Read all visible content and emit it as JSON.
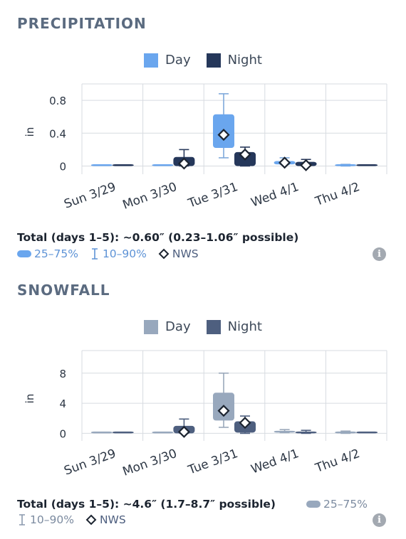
{
  "precipitation": {
    "title": "PRECIPITATION",
    "legend": {
      "day_label": "Day",
      "night_label": "Night"
    },
    "colors": {
      "day": "#6aa6ee",
      "night": "#25375a",
      "whisker_day": "#7fa9da",
      "whisker_night": "#2a3a5c"
    },
    "total": "Total (days 1–5): ~0.60″ (0.23–1.06″ possible)",
    "key": {
      "range_25_75": "25–75%",
      "range_10_90": "10–90%",
      "nws": "NWS"
    },
    "chart_data": {
      "type": "box",
      "title": "",
      "xlabel": "",
      "ylabel": "in",
      "categories": [
        "Sun 3/29",
        "Mon 3/30",
        "Tue 3/31",
        "Wed 4/1",
        "Thu 4/2"
      ],
      "ylim": [
        -0.1,
        1.0
      ],
      "yticks": [
        0,
        0.4,
        0.8
      ],
      "ytick_labels": [
        "0",
        "0.4",
        "0.8"
      ],
      "series": [
        {
          "name": "Day",
          "boxes": [
            {
              "p10": 0,
              "p25": 0,
              "p75": 0,
              "p90": 0,
              "nws": null
            },
            {
              "p10": 0,
              "p25": 0,
              "p75": 0,
              "p90": 0,
              "nws": null
            },
            {
              "p10": 0.1,
              "p25": 0.22,
              "p75": 0.63,
              "p90": 0.88,
              "nws": 0.38
            },
            {
              "p10": 0.02,
              "p25": 0.02,
              "p75": 0.06,
              "p90": 0.1,
              "nws": 0.04
            },
            {
              "p10": 0,
              "p25": 0,
              "p75": 0.02,
              "p90": 0.02,
              "nws": null
            }
          ]
        },
        {
          "name": "Night",
          "boxes": [
            {
              "p10": 0,
              "p25": 0,
              "p75": 0,
              "p90": 0,
              "nws": null
            },
            {
              "p10": 0,
              "p25": 0,
              "p75": 0.11,
              "p90": 0.2,
              "nws": 0.03
            },
            {
              "p10": 0,
              "p25": 0,
              "p75": 0.17,
              "p90": 0.23,
              "nws": 0.14
            },
            {
              "p10": 0,
              "p25": 0,
              "p75": 0.05,
              "p90": 0.08,
              "nws": 0.01
            },
            {
              "p10": 0,
              "p25": 0,
              "p75": 0,
              "p90": 0,
              "nws": null
            }
          ]
        }
      ]
    }
  },
  "snowfall": {
    "title": "SNOWFALL",
    "legend": {
      "day_label": "Day",
      "night_label": "Night"
    },
    "colors": {
      "day": "#98a8bd",
      "night": "#4e5f7f",
      "whisker_day": "#9aa8ba",
      "whisker_night": "#4e5f7f"
    },
    "total": "Total (days 1–5): ~4.6″ (1.7–8.7″ possible)",
    "key": {
      "range_25_75": "25–75%",
      "range_10_90": "10–90%",
      "nws": "NWS"
    },
    "chart_data": {
      "type": "box",
      "title": "",
      "xlabel": "",
      "ylabel": "in",
      "categories": [
        "Sun 3/29",
        "Mon 3/30",
        "Tue 3/31",
        "Wed 4/1",
        "Thu 4/2"
      ],
      "ylim": [
        -1,
        11
      ],
      "yticks": [
        0,
        4,
        8
      ],
      "ytick_labels": [
        "0",
        "4",
        "8"
      ],
      "series": [
        {
          "name": "Day",
          "boxes": [
            {
              "p10": 0,
              "p25": 0,
              "p75": 0,
              "p90": 0,
              "nws": null
            },
            {
              "p10": 0,
              "p25": 0,
              "p75": 0,
              "p90": 0,
              "nws": null
            },
            {
              "p10": 0.8,
              "p25": 1.7,
              "p75": 5.4,
              "p90": 8.0,
              "nws": 3.0
            },
            {
              "p10": 0.1,
              "p25": 0.1,
              "p75": 0.3,
              "p90": 0.5,
              "nws": null
            },
            {
              "p10": 0,
              "p25": 0,
              "p75": 0.2,
              "p90": 0.3,
              "nws": null
            }
          ]
        },
        {
          "name": "Night",
          "boxes": [
            {
              "p10": 0,
              "p25": 0,
              "p75": 0,
              "p90": 0,
              "nws": null
            },
            {
              "p10": 0,
              "p25": 0,
              "p75": 1.0,
              "p90": 1.9,
              "nws": 0.2
            },
            {
              "p10": 0,
              "p25": 0.1,
              "p75": 1.6,
              "p90": 2.3,
              "nws": 1.4
            },
            {
              "p10": 0,
              "p25": 0,
              "p75": 0.2,
              "p90": 0.4,
              "nws": null
            },
            {
              "p10": 0,
              "p25": 0,
              "p75": 0,
              "p90": 0,
              "nws": null
            }
          ]
        }
      ]
    }
  }
}
